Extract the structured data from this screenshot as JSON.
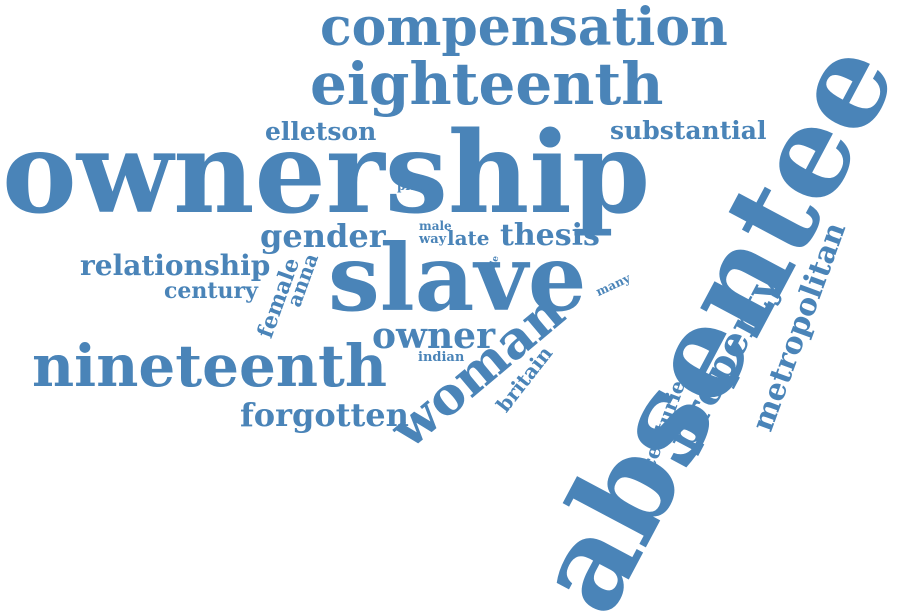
{
  "colors": {
    "word": "#4a84b8",
    "background": "#ffffff"
  },
  "words": {
    "ownership": "ownership",
    "absentee": "absentee",
    "slave": "slave",
    "nineteenth": "nineteenth",
    "eighteenth": "eighteenth",
    "compensation": "compensation",
    "woman": "woman",
    "property": "property",
    "owner": "owner",
    "gender": "gender",
    "relationship": "relationship",
    "metropolitan": "metropolitan",
    "forgotten": "forgotten",
    "substantial": "substantial",
    "elletson": "elletson",
    "thesis": "thesis",
    "century": "century",
    "female": "female",
    "anna": "anna",
    "britain": "britain",
    "centuries": "centuries",
    "late": "late",
    "way": "way",
    "male": "male",
    "place": "place",
    "indian": "indian",
    "many": "many",
    "able": "able"
  }
}
